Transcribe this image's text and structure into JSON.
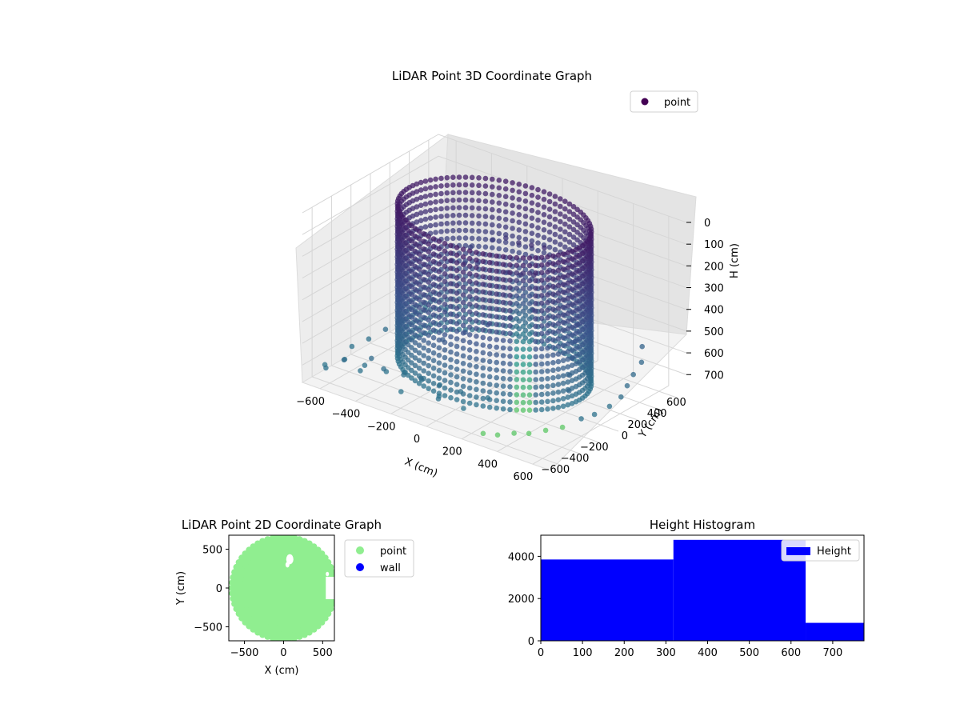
{
  "chart_data": [
    {
      "type": "scatter",
      "title": "LiDAR Point 3D Coordinate Graph",
      "xlabel": "X (cm)",
      "ylabel": "Y (cm)",
      "zlabel": "H (cm)",
      "xlim": [
        -700,
        700
      ],
      "ylim": [
        -700,
        700
      ],
      "zlim": [
        0,
        780
      ],
      "z_inverted": true,
      "x_ticks": [
        -600,
        -400,
        -200,
        0,
        200,
        400,
        600
      ],
      "y_ticks": [
        -600,
        -400,
        -200,
        0,
        200,
        400,
        600
      ],
      "z_ticks": [
        0,
        100,
        200,
        300,
        400,
        500,
        600,
        700
      ],
      "colormap": "viridis",
      "grid": true,
      "legend": {
        "placement": "top-right",
        "entries": [
          {
            "label": "point",
            "color": "#440154"
          }
        ]
      },
      "series": [
        {
          "name": "point",
          "description_values": "cylindrical wall of points, radius ~480 cm, height 0-700 cm",
          "ring": {
            "radius": 480,
            "h_min": 0,
            "h_max": 700
          },
          "scattered_points": [
            [
              -650,
              -560,
              720
            ],
            [
              -600,
              -640,
              700
            ],
            [
              -560,
              -520,
              680
            ],
            [
              -520,
              -600,
              650
            ],
            [
              -480,
              -460,
              700
            ],
            [
              -450,
              -560,
              690
            ],
            [
              -420,
              -500,
              640
            ],
            [
              -380,
              -420,
              710
            ],
            [
              -340,
              -520,
              660
            ],
            [
              -300,
              -380,
              700
            ],
            [
              -260,
              -460,
              680
            ],
            [
              -220,
              -560,
              720
            ],
            [
              -180,
              -420,
              690
            ],
            [
              -140,
              -500,
              650
            ],
            [
              -100,
              -380,
              700
            ],
            [
              -60,
              -460,
              720
            ],
            [
              -20,
              -540,
              700
            ],
            [
              40,
              -420,
              680
            ],
            [
              100,
              -500,
              720
            ],
            [
              160,
              -360,
              690
            ],
            [
              -640,
              -300,
              700
            ],
            [
              -600,
              -200,
              680
            ],
            [
              -560,
              -100,
              650
            ],
            [
              -520,
              0,
              620
            ],
            [
              -500,
              100,
              600
            ],
            [
              -460,
              200,
              560
            ],
            [
              -620,
              420,
              700
            ],
            [
              -560,
              520,
              720
            ],
            [
              560,
              500,
              560
            ],
            [
              600,
              420,
              600
            ],
            [
              620,
              300,
              620
            ],
            [
              640,
              200,
              640
            ],
            [
              660,
              100,
              660
            ],
            [
              650,
              0,
              680
            ],
            [
              620,
              -100,
              700
            ],
            [
              600,
              -200,
              700
            ],
            [
              560,
              -320,
              720
            ],
            [
              520,
              -420,
              720
            ],
            [
              480,
              -520,
              720
            ],
            [
              440,
              -600,
              710
            ],
            [
              380,
              -660,
              720
            ],
            [
              320,
              -700,
              720
            ],
            [
              520,
              -180,
              600
            ],
            [
              480,
              -100,
              560
            ],
            [
              440,
              0,
              520
            ],
            [
              400,
              100,
              480
            ],
            [
              360,
              200,
              440
            ],
            [
              -300,
              300,
              300
            ],
            [
              -200,
              350,
              250
            ],
            [
              -100,
              300,
              200
            ],
            [
              0,
              250,
              180
            ],
            [
              100,
              200,
              150
            ],
            [
              200,
              150,
              120
            ],
            [
              -350,
              200,
              350
            ],
            [
              -250,
              150,
              320
            ],
            [
              -150,
              100,
              280
            ],
            [
              50,
              50,
              250
            ],
            [
              150,
              0,
              220
            ],
            [
              250,
              -50,
              180
            ],
            [
              300,
              -150,
              300
            ],
            [
              200,
              -200,
              350
            ],
            [
              100,
              -250,
              400
            ],
            [
              0,
              -300,
              450
            ],
            [
              -100,
              -350,
              500
            ]
          ]
        }
      ]
    },
    {
      "type": "scatter",
      "title": "LiDAR Point 2D Coordinate Graph",
      "xlabel": "X (cm)",
      "ylabel": "Y (cm)",
      "xlim": [
        -700,
        650
      ],
      "ylim": [
        -680,
        680
      ],
      "x_ticks": [
        -500,
        0,
        500
      ],
      "y_ticks": [
        -500,
        0,
        500
      ],
      "legend": {
        "placement": "outside-right",
        "entries": [
          {
            "label": "point",
            "color": "#90ee90"
          },
          {
            "label": "wall",
            "color": "#0000ff"
          }
        ]
      },
      "series": [
        {
          "name": "point",
          "color": "#90ee90",
          "description_values": "dense filled disk of points covering roughly x -600..640, y -640..700"
        },
        {
          "name": "wall",
          "color": "#0000ff",
          "values": []
        }
      ]
    },
    {
      "type": "bar",
      "title": "Height Histogram",
      "xlabel": "",
      "ylabel": "",
      "xlim": [
        0,
        775
      ],
      "ylim": [
        0,
        5000
      ],
      "x_ticks": [
        0,
        100,
        200,
        300,
        400,
        500,
        600,
        700
      ],
      "y_ticks": [
        0,
        2000,
        4000
      ],
      "legend": {
        "placement": "top-right",
        "entries": [
          {
            "label": "Height",
            "color": "#0000ff"
          }
        ]
      },
      "series": [
        {
          "name": "Height",
          "color": "#0000ff",
          "bins": [
            {
              "x0": 0,
              "x1": 318,
              "value": 3850
            },
            {
              "x0": 318,
              "x1": 635,
              "value": 4780
            },
            {
              "x0": 635,
              "x1": 775,
              "value": 850
            }
          ]
        }
      ]
    }
  ]
}
